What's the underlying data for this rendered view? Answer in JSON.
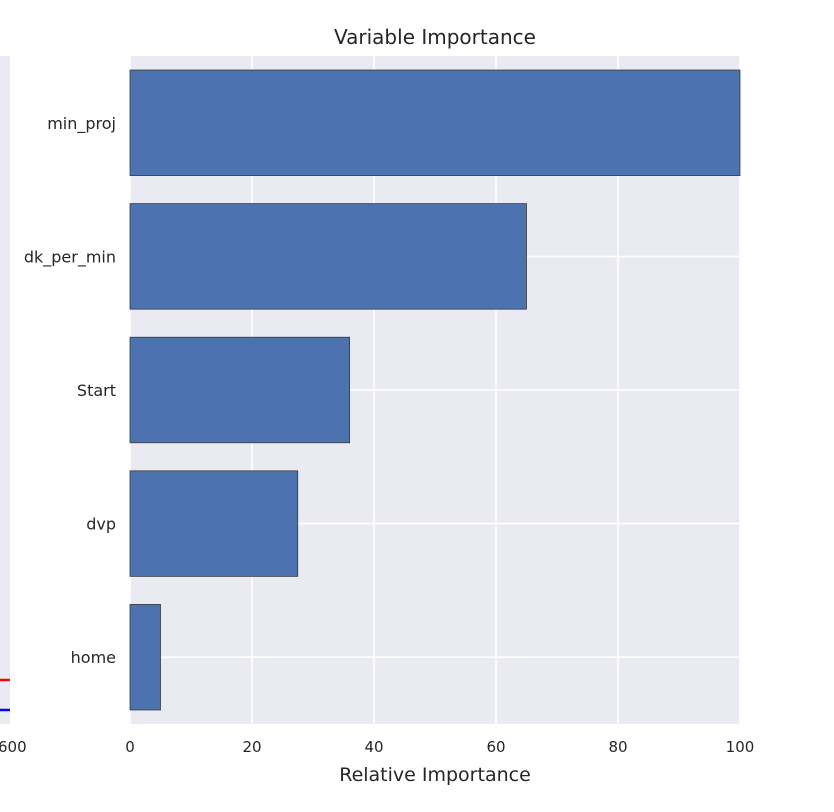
{
  "chart_data": {
    "type": "bar",
    "orientation": "horizontal",
    "title": "Variable Importance",
    "xlabel": "Relative Importance",
    "ylabel": "",
    "xlim": [
      0,
      100
    ],
    "xticks": [
      "0",
      "20",
      "40",
      "60",
      "80",
      "100"
    ],
    "grid": true,
    "categories": [
      "min_proj",
      "dk_per_min",
      "Start",
      "dvp",
      "home"
    ],
    "values": [
      100,
      65,
      36,
      27.5,
      5
    ],
    "bar_color": "#4c72b0",
    "background_color": "#eaeaf2"
  },
  "partial_chart": {
    "tick_label": "600",
    "line_colors": [
      "#ff0000",
      "#0000ff"
    ]
  }
}
